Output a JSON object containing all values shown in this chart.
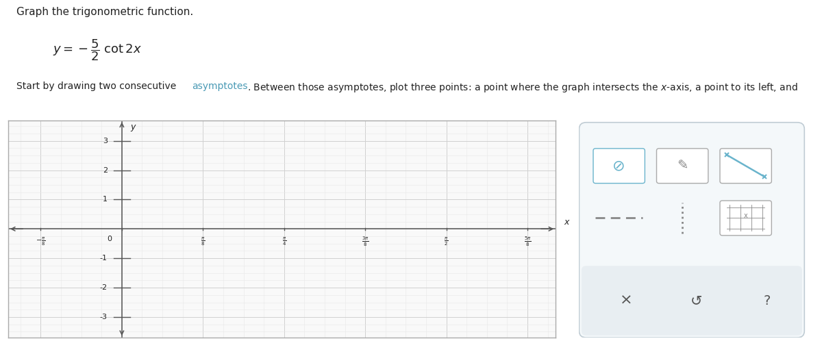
{
  "title_text": "Graph the trigonometric function.",
  "graph_xlim": [
    -0.55,
    2.1
  ],
  "graph_ylim": [
    -3.7,
    3.7
  ],
  "x_ticks_values": [
    -0.392699,
    0,
    0.392699,
    0.785398,
    1.178097,
    1.570796,
    1.963495
  ],
  "x_ticks_labels": [
    "-\\frac{\\pi}{8}",
    "0",
    "\\frac{\\pi}{8}",
    "\\frac{\\pi}{4}",
    "\\frac{3\\pi}{8}",
    "\\frac{\\pi}{2}",
    "\\frac{5\\pi}{8}"
  ],
  "y_ticks_values": [
    -3,
    -2,
    -1,
    1,
    2,
    3
  ],
  "grid_color": "#d0d0d0",
  "subgrid_color": "#e8e8e8",
  "axis_color": "#555555",
  "background_color": "#ffffff",
  "plot_area_bg": "#f9f9f9",
  "panel_border": "#c0ccd4",
  "text_color": "#222222",
  "link_color": "#4a9ab5",
  "icon_color": "#6ab4cc"
}
